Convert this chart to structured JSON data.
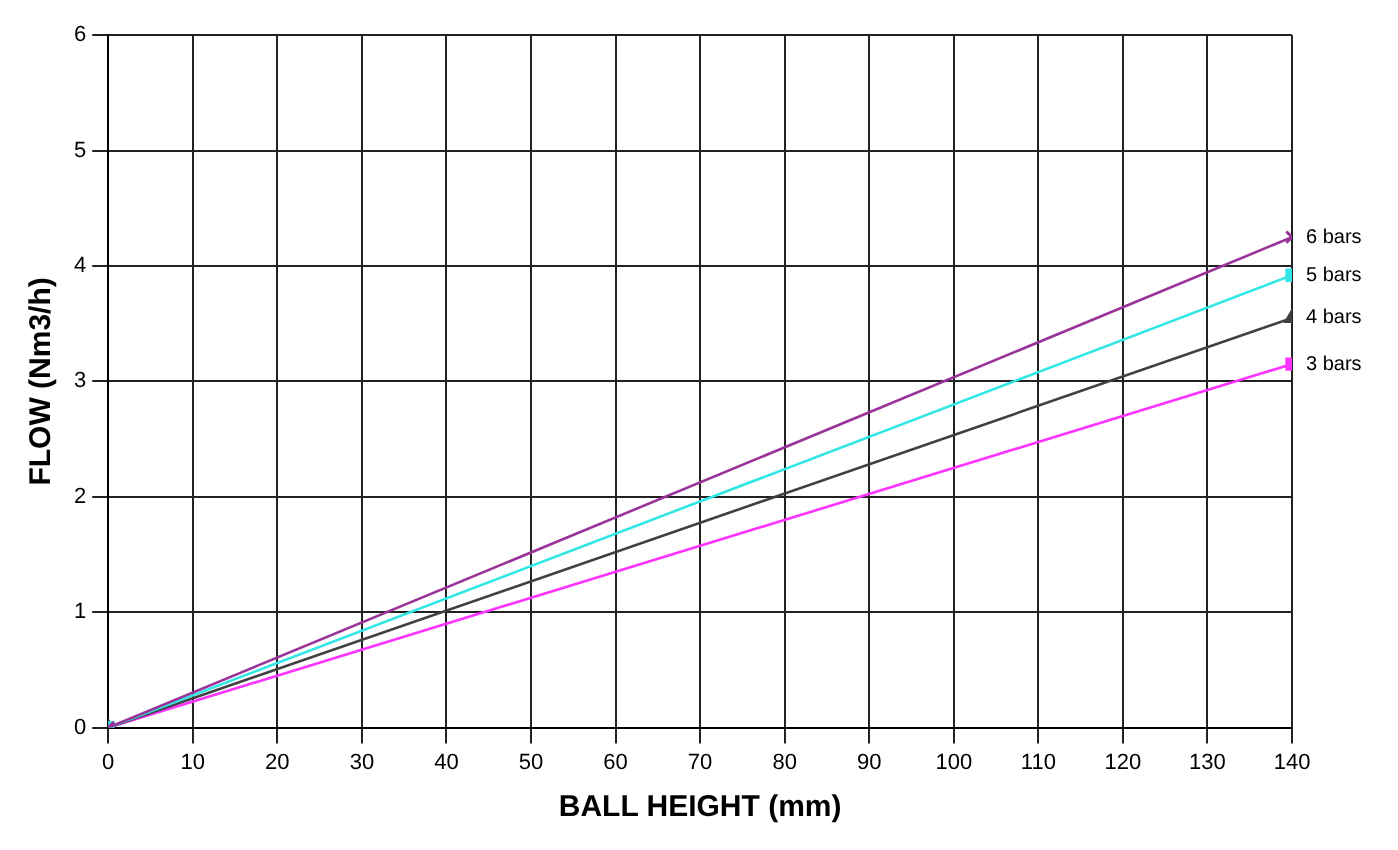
{
  "chart_data": {
    "type": "line",
    "xlabel": "BALL HEIGHT (mm)",
    "ylabel": "FLOW (Nm3/h)",
    "x": [
      0,
      140
    ],
    "series": [
      {
        "name": "6 bars",
        "color": "#993399",
        "values": [
          0,
          4.25
        ],
        "marker": "cross"
      },
      {
        "name": "5 bars",
        "color": "#33e6e6",
        "values": [
          0,
          3.92
        ],
        "marker": "square"
      },
      {
        "name": "4 bars",
        "color": "#404040",
        "values": [
          0,
          3.55
        ],
        "marker": "triangle"
      },
      {
        "name": "3 bars",
        "color": "#ff33ff",
        "values": [
          0,
          3.15
        ],
        "marker": "square"
      }
    ],
    "xlim": [
      0,
      140
    ],
    "xticks": [
      0,
      10,
      20,
      30,
      40,
      50,
      60,
      70,
      80,
      90,
      100,
      110,
      120,
      130,
      140
    ],
    "ylim": [
      0,
      6
    ],
    "yticks": [
      0,
      1,
      2,
      3,
      4,
      5,
      6
    ],
    "grid": true,
    "legend": false,
    "line_style": "solid"
  }
}
